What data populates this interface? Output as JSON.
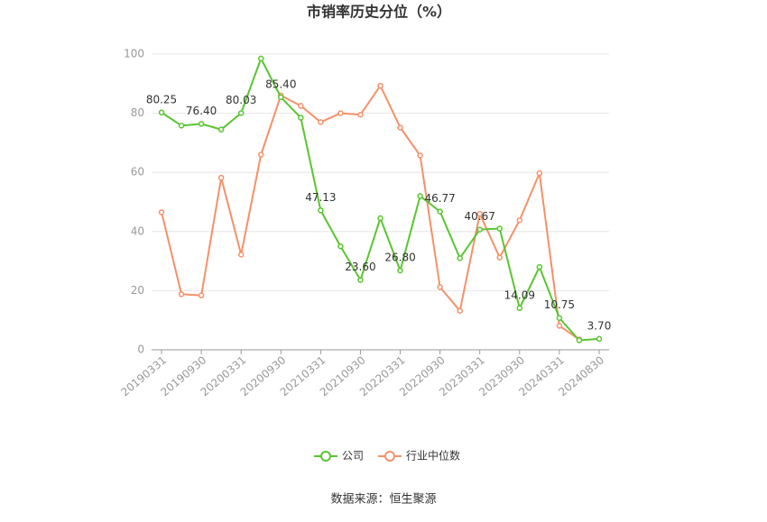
{
  "chart_data": {
    "type": "line",
    "title": "市销率历史分位（%）",
    "categories": [
      "20190331",
      null,
      "20190930",
      null,
      "20200331",
      null,
      "20200930",
      null,
      "20210331",
      null,
      "20210930",
      null,
      "20220331",
      null,
      "20220930",
      null,
      "20230331",
      null,
      "20230930",
      null,
      "20240331",
      null,
      "20240830"
    ],
    "series": [
      {
        "name": "公司",
        "color": "#5ac531",
        "values": [
          80.25,
          75.8,
          76.4,
          74.5,
          80.03,
          98.5,
          85.4,
          78.5,
          47.13,
          35,
          23.6,
          44.5,
          26.8,
          52,
          46.77,
          31,
          40.67,
          41,
          14.09,
          28,
          10.75,
          3.2,
          3.7
        ],
        "value_labels": [
          "80.25",
          null,
          "76.40",
          null,
          "80.03",
          null,
          "85.40",
          null,
          "47.13",
          null,
          "23.60",
          null,
          "26.80",
          null,
          "46.77",
          null,
          "40.67",
          null,
          "14.09",
          null,
          "10.75",
          null,
          "3.70"
        ]
      },
      {
        "name": "行业中位数",
        "color": "#f4916a",
        "values": [
          46.5,
          18.8,
          18.4,
          58.2,
          32.2,
          66,
          86,
          82.5,
          77,
          80,
          79.5,
          89.3,
          75.2,
          65.7,
          21.2,
          13.2,
          46,
          31.2,
          43.8,
          59.7,
          8.1,
          3.5,
          null
        ]
      }
    ],
    "ylim": [
      0,
      100
    ],
    "yticks": [
      0,
      20,
      40,
      60,
      80,
      100
    ],
    "grid": true,
    "legend": "bottom",
    "source": "数据来源：恒生聚源"
  }
}
